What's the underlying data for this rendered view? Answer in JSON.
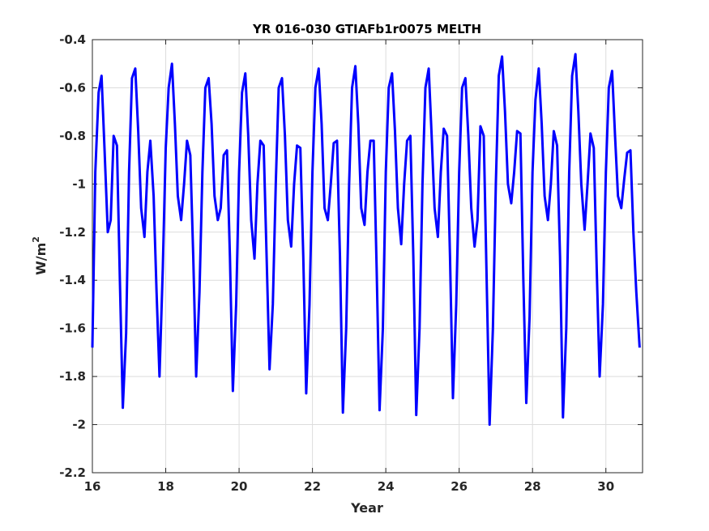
{
  "chart_data": {
    "type": "line",
    "title": "YR 016-030 GTIAFb1r0075 MELTH",
    "xlabel": "Year",
    "ylabel": "W/m",
    "ylabel_sup": "2",
    "xlim": [
      16,
      31
    ],
    "ylim": [
      -2.2,
      -0.4
    ],
    "xticks": [
      16,
      18,
      20,
      22,
      24,
      26,
      28,
      30
    ],
    "xtick_labels": [
      "16",
      "18",
      "20",
      "22",
      "24",
      "26",
      "28",
      "30"
    ],
    "yticks": [
      -2.2,
      -2.0,
      -1.8,
      -1.6,
      -1.4,
      -1.2,
      -1.0,
      -0.8,
      -0.6,
      -0.4
    ],
    "ytick_labels": [
      "-2.2",
      "-2",
      "-1.8",
      "-1.6",
      "-1.4",
      "-1.2",
      "-1",
      "-0.8",
      "-0.6",
      "-0.4"
    ],
    "grid": true,
    "color": "#0000ff",
    "series": [
      {
        "values_description": "monthly anomaly time series 16..31",
        "x": [
          16.0,
          16.08,
          16.17,
          16.25,
          16.33,
          16.42,
          16.5,
          16.58,
          16.67,
          16.75,
          16.83,
          16.92,
          17.0,
          17.08,
          17.17,
          17.25,
          17.33,
          17.42,
          17.5,
          17.58,
          17.67,
          17.75,
          17.83,
          17.92,
          18.0,
          18.08,
          18.17,
          18.25,
          18.33,
          18.42,
          18.5,
          18.58,
          18.67,
          18.75,
          18.83,
          18.92,
          19.0,
          19.08,
          19.17,
          19.25,
          19.33,
          19.42,
          19.5,
          19.58,
          19.67,
          19.75,
          19.83,
          19.92,
          20.0,
          20.08,
          20.17,
          20.25,
          20.33,
          20.42,
          20.5,
          20.58,
          20.67,
          20.75,
          20.83,
          20.92,
          21.0,
          21.08,
          21.17,
          21.25,
          21.33,
          21.42,
          21.5,
          21.58,
          21.67,
          21.75,
          21.83,
          21.92,
          22.0,
          22.08,
          22.17,
          22.25,
          22.33,
          22.42,
          22.5,
          22.58,
          22.67,
          22.75,
          22.83,
          22.92,
          23.0,
          23.08,
          23.17,
          23.25,
          23.33,
          23.42,
          23.5,
          23.58,
          23.67,
          23.75,
          23.83,
          23.92,
          24.0,
          24.08,
          24.17,
          24.25,
          24.33,
          24.42,
          24.5,
          24.58,
          24.67,
          24.75,
          24.83,
          24.92,
          25.0,
          25.08,
          25.17,
          25.25,
          25.33,
          25.42,
          25.5,
          25.58,
          25.67,
          25.75,
          25.83,
          25.92,
          26.0,
          26.08,
          26.17,
          26.25,
          26.33,
          26.42,
          26.5,
          26.58,
          26.67,
          26.75,
          26.83,
          26.92,
          27.0,
          27.08,
          27.17,
          27.25,
          27.33,
          27.42,
          27.5,
          27.58,
          27.67,
          27.75,
          27.83,
          27.92,
          28.0,
          28.08,
          28.17,
          28.25,
          28.33,
          28.42,
          28.5,
          28.58,
          28.67,
          28.75,
          28.83,
          28.92,
          29.0,
          29.08,
          29.17,
          29.25,
          29.33,
          29.42,
          29.5,
          29.58,
          29.67,
          29.75,
          29.83,
          29.92,
          30.0,
          30.08,
          30.17,
          30.25,
          30.33,
          30.42,
          30.5,
          30.58,
          30.67,
          30.75,
          30.83,
          30.92
        ],
        "y": [
          -1.68,
          -0.95,
          -0.62,
          -0.55,
          -0.85,
          -1.2,
          -1.15,
          -0.8,
          -0.84,
          -1.4,
          -1.93,
          -1.62,
          -0.95,
          -0.56,
          -0.52,
          -0.78,
          -1.1,
          -1.22,
          -0.95,
          -0.82,
          -1.05,
          -1.45,
          -1.8,
          -1.35,
          -0.85,
          -0.6,
          -0.5,
          -0.75,
          -1.05,
          -1.15,
          -1.0,
          -0.82,
          -0.88,
          -1.3,
          -1.8,
          -1.45,
          -0.95,
          -0.6,
          -0.56,
          -0.75,
          -1.05,
          -1.15,
          -1.1,
          -0.88,
          -0.86,
          -1.3,
          -1.86,
          -1.5,
          -0.95,
          -0.62,
          -0.54,
          -0.8,
          -1.15,
          -1.31,
          -1.0,
          -0.82,
          -0.84,
          -1.3,
          -1.77,
          -1.5,
          -1.0,
          -0.6,
          -0.56,
          -0.8,
          -1.15,
          -1.26,
          -1.0,
          -0.84,
          -0.85,
          -1.3,
          -1.87,
          -1.5,
          -0.95,
          -0.6,
          -0.52,
          -0.75,
          -1.1,
          -1.15,
          -1.0,
          -0.83,
          -0.82,
          -1.3,
          -1.95,
          -1.6,
          -1.0,
          -0.6,
          -0.51,
          -0.75,
          -1.1,
          -1.17,
          -0.95,
          -0.82,
          -0.82,
          -1.35,
          -1.94,
          -1.6,
          -0.95,
          -0.6,
          -0.54,
          -0.78,
          -1.1,
          -1.25,
          -1.0,
          -0.82,
          -0.8,
          -1.3,
          -1.96,
          -1.6,
          -1.0,
          -0.6,
          -0.52,
          -0.8,
          -1.1,
          -1.22,
          -0.95,
          -0.77,
          -0.8,
          -1.3,
          -1.89,
          -1.5,
          -0.95,
          -0.6,
          -0.56,
          -0.8,
          -1.1,
          -1.26,
          -1.15,
          -0.76,
          -0.8,
          -1.4,
          -2.0,
          -1.6,
          -1.0,
          -0.55,
          -0.47,
          -0.7,
          -1.0,
          -1.08,
          -0.95,
          -0.78,
          -0.79,
          -1.4,
          -1.91,
          -1.55,
          -0.95,
          -0.65,
          -0.52,
          -0.75,
          -1.05,
          -1.15,
          -1.0,
          -0.78,
          -0.84,
          -1.3,
          -1.97,
          -1.6,
          -0.95,
          -0.55,
          -0.46,
          -0.7,
          -1.0,
          -1.19,
          -1.0,
          -0.79,
          -0.85,
          -1.35,
          -1.8,
          -1.5,
          -0.95,
          -0.6,
          -0.53,
          -0.8,
          -1.05,
          -1.1,
          -0.98,
          -0.87,
          -0.86,
          -1.2,
          -1.45,
          -1.68
        ]
      }
    ]
  }
}
